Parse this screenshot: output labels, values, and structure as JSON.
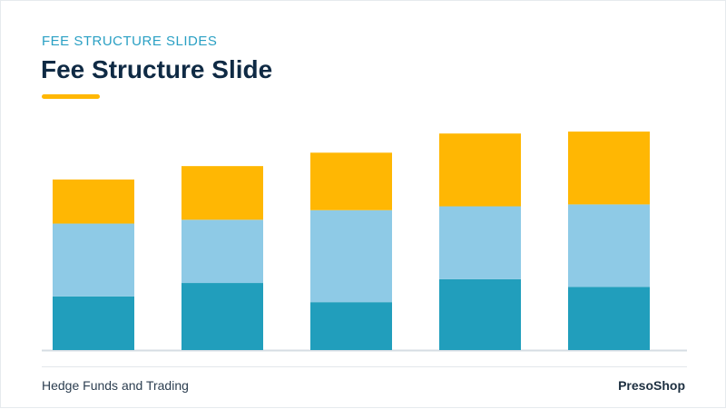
{
  "header": {
    "kicker": "FEE STRUCTURE SLIDES",
    "title": "Fee Structure Slide"
  },
  "footer": {
    "left_text": "Hedge Funds and Trading",
    "brand": "PresoShop"
  },
  "colors": {
    "accent_yellow": "#ffb703",
    "light_blue": "#8ecae6",
    "teal": "#219ebc",
    "title_navy": "#0f2a44",
    "kicker_teal": "#2aa0c4",
    "baseline": "#d6dde3"
  },
  "chart_data": {
    "type": "bar",
    "stacked": true,
    "categories": [
      "",
      "",
      "",
      "",
      ""
    ],
    "series": [
      {
        "color": "#219ebc",
        "values": [
          28,
          35,
          25,
          37,
          33
        ]
      },
      {
        "color": "#8ecae6",
        "values": [
          38,
          33,
          48,
          38,
          43
        ]
      },
      {
        "color": "#ffb703",
        "values": [
          23,
          28,
          30,
          38,
          38
        ]
      }
    ],
    "ylim": [
      0,
      115
    ],
    "title": "",
    "xlabel": "",
    "ylabel": "",
    "grid": false,
    "legend": "none"
  }
}
